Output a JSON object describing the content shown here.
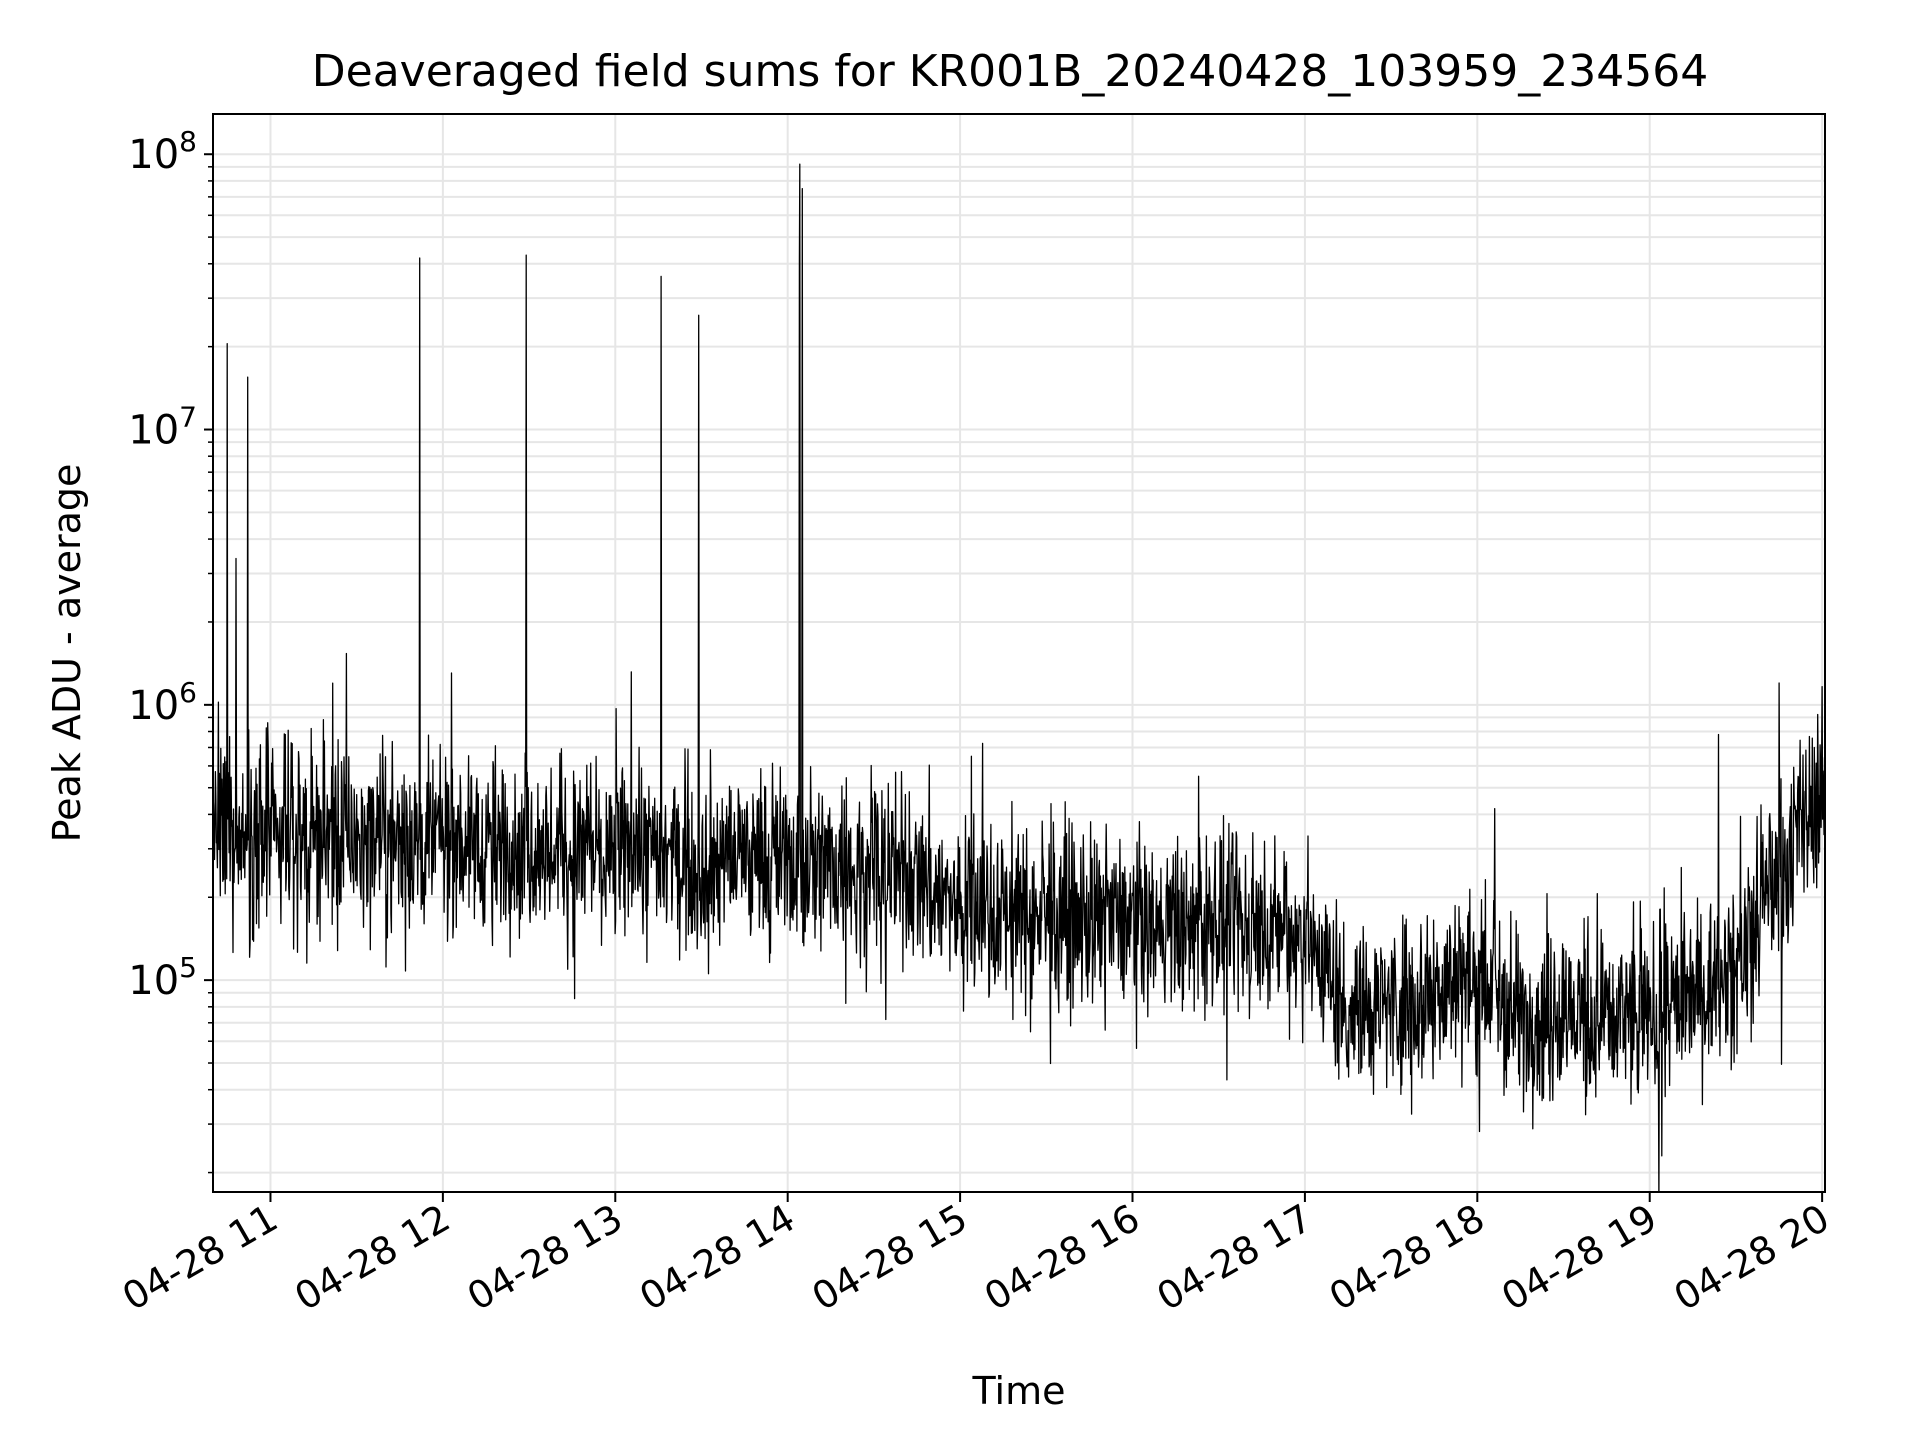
{
  "chart_data": {
    "type": "line",
    "title": "Deaveraged field sums for KR001B_20240428_103959_234564",
    "xlabel": "Time",
    "ylabel": "Peak ADU - average",
    "yscale": "log",
    "ylim": [
      17000,
      140000000
    ],
    "xlim": [
      "2024-04-28 10:40",
      "2024-04-28 20:01"
    ],
    "grid": true,
    "x_ticks": [
      {
        "t": "2024-04-28 11:00",
        "label": "04-28 11"
      },
      {
        "t": "2024-04-28 12:00",
        "label": "04-28 12"
      },
      {
        "t": "2024-04-28 13:00",
        "label": "04-28 13"
      },
      {
        "t": "2024-04-28 14:00",
        "label": "04-28 14"
      },
      {
        "t": "2024-04-28 15:00",
        "label": "04-28 15"
      },
      {
        "t": "2024-04-28 16:00",
        "label": "04-28 16"
      },
      {
        "t": "2024-04-28 17:00",
        "label": "04-28 17"
      },
      {
        "t": "2024-04-28 18:00",
        "label": "04-28 18"
      },
      {
        "t": "2024-04-28 19:00",
        "label": "04-28 19"
      },
      {
        "t": "2024-04-28 20:00",
        "label": "04-28 20"
      }
    ],
    "y_ticks": [
      {
        "value": 100000,
        "base": "10",
        "exp": "5"
      },
      {
        "value": 1000000,
        "base": "10",
        "exp": "6"
      },
      {
        "value": 10000000,
        "base": "10",
        "exp": "7"
      },
      {
        "value": 100000000,
        "base": "10",
        "exp": "8"
      }
    ],
    "line_color": "#000000",
    "baseline_trend": [
      {
        "t": "2024-04-28 10:40",
        "y": 330000
      },
      {
        "t": "2024-04-28 12:00",
        "y": 320000
      },
      {
        "t": "2024-04-28 13:00",
        "y": 290000
      },
      {
        "t": "2024-04-28 14:00",
        "y": 270000
      },
      {
        "t": "2024-04-28 14:45",
        "y": 240000
      },
      {
        "t": "2024-04-28 15:00",
        "y": 180000
      },
      {
        "t": "2024-04-28 16:00",
        "y": 160000
      },
      {
        "t": "2024-04-28 17:00",
        "y": 150000
      },
      {
        "t": "2024-04-28 17:15",
        "y": 80000
      },
      {
        "t": "2024-04-28 17:35",
        "y": 85000
      },
      {
        "t": "2024-04-28 18:00",
        "y": 100000
      },
      {
        "t": "2024-04-28 18:15",
        "y": 75000
      },
      {
        "t": "2024-04-28 19:00",
        "y": 75000
      },
      {
        "t": "2024-04-28 19:30",
        "y": 110000
      },
      {
        "t": "2024-04-28 19:45",
        "y": 260000
      },
      {
        "t": "2024-04-28 20:01",
        "y": 500000
      }
    ],
    "spikes": [
      {
        "t": "2024-04-28 10:45",
        "y": 20500000
      },
      {
        "t": "2024-04-28 10:48",
        "y": 3400000
      },
      {
        "t": "2024-04-28 10:52",
        "y": 15500000
      },
      {
        "t": "2024-04-28 11:52",
        "y": 42000000
      },
      {
        "t": "2024-04-28 12:29",
        "y": 43000000
      },
      {
        "t": "2024-04-28 13:16",
        "y": 36000000
      },
      {
        "t": "2024-04-28 13:29",
        "y": 26000000
      },
      {
        "t": "2024-04-28 14:04",
        "y": 41000000
      },
      {
        "t": "2024-04-28 14:04",
        "y": 92000000
      },
      {
        "t": "2024-04-28 14:05",
        "y": 75000000
      },
      {
        "t": "2024-04-28 15:04",
        "y": 650000
      },
      {
        "t": "2024-04-28 16:23",
        "y": 550000
      },
      {
        "t": "2024-04-28 18:06",
        "y": 420000
      },
      {
        "t": "2024-04-28 19:24",
        "y": 780000
      },
      {
        "t": "2024-04-28 19:45",
        "y": 1200000
      }
    ]
  }
}
